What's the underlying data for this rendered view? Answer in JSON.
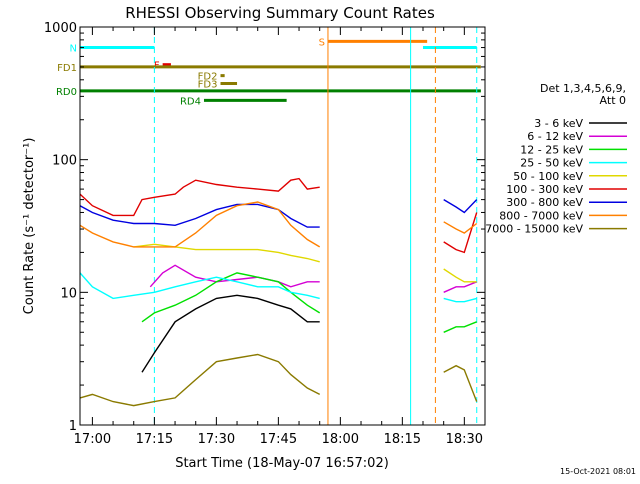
{
  "title": "RHESSI Observing Summary Count Rates",
  "xlabel": "Start Time (18-May-07 16:57:02)",
  "ylabel": "Count Rate (s⁻¹ detector⁻¹)",
  "footer_date": "15-Oct-2021 08:01",
  "legend": {
    "header": [
      "Det 1,3,4,5,6,9,",
      "Att 0"
    ],
    "placement": "right-outside"
  },
  "chart_data": {
    "type": "line",
    "y_scale": "log",
    "xlim": [
      "16:57",
      "18:35"
    ],
    "ylim": [
      1,
      1000
    ],
    "x_ticks": [
      "17:00",
      "17:15",
      "17:30",
      "17:45",
      "18:00",
      "18:15",
      "18:30"
    ],
    "y_ticks": [
      {
        "value": 1,
        "label": "1"
      },
      {
        "value": 10,
        "label": "10"
      },
      {
        "value": 100,
        "label": "100"
      },
      {
        "value": 1000,
        "label": "1000"
      }
    ],
    "series": [
      {
        "name": "3 - 6 keV",
        "color": "#000000",
        "segments": [
          {
            "x": [
              "17:12",
              "17:15",
              "17:20",
              "17:25",
              "17:30",
              "17:35",
              "17:40",
              "17:45",
              "17:48",
              "17:52",
              "17:55"
            ],
            "y": [
              2.5,
              3.5,
              6,
              7.5,
              9,
              9.5,
              9,
              8,
              7.5,
              6,
              6
            ]
          }
        ]
      },
      {
        "name": "6 - 12 keV",
        "color": "#d400d4",
        "segments": [
          {
            "x": [
              "17:14",
              "17:17",
              "17:20",
              "17:25",
              "17:30",
              "17:35",
              "17:40",
              "17:45",
              "17:48",
              "17:52",
              "17:55"
            ],
            "y": [
              11,
              14,
              16,
              13,
              12,
              12.5,
              13,
              12,
              11,
              12,
              12
            ]
          },
          {
            "x": [
              "18:25",
              "18:28",
              "18:30",
              "18:33"
            ],
            "y": [
              10,
              11,
              11,
              12
            ]
          }
        ]
      },
      {
        "name": "12 - 25 keV",
        "color": "#00e000",
        "segments": [
          {
            "x": [
              "17:12",
              "17:15",
              "17:20",
              "17:25",
              "17:30",
              "17:35",
              "17:40",
              "17:45",
              "17:48",
              "17:52",
              "17:55"
            ],
            "y": [
              6,
              7,
              8,
              9.5,
              12,
              14,
              13,
              12,
              10,
              8,
              7
            ]
          },
          {
            "x": [
              "18:25",
              "18:28",
              "18:30",
              "18:33"
            ],
            "y": [
              5,
              5.5,
              5.5,
              6
            ]
          }
        ]
      },
      {
        "name": "25 - 50 keV",
        "color": "#00ffff",
        "segments": [
          {
            "x": [
              "16:57",
              "17:00",
              "17:05",
              "17:10",
              "17:15",
              "17:20",
              "17:25",
              "17:30",
              "17:35",
              "17:40",
              "17:45",
              "17:48",
              "17:52",
              "17:55"
            ],
            "y": [
              14,
              11,
              9,
              9.5,
              10,
              11,
              12,
              13,
              12,
              11,
              11,
              10,
              9.5,
              9
            ]
          },
          {
            "x": [
              "18:25",
              "18:28",
              "18:30",
              "18:33"
            ],
            "y": [
              9,
              8.5,
              8.5,
              9
            ]
          }
        ]
      },
      {
        "name": "50 - 100 keV",
        "color": "#e0d800",
        "segments": [
          {
            "x": [
              "17:10",
              "17:15",
              "17:20",
              "17:25",
              "17:30",
              "17:35",
              "17:40",
              "17:45",
              "17:48",
              "17:52",
              "17:55"
            ],
            "y": [
              22,
              23,
              22,
              21,
              21,
              21,
              21,
              20,
              19,
              18,
              17
            ]
          },
          {
            "x": [
              "18:25",
              "18:28",
              "18:30",
              "18:33"
            ],
            "y": [
              15,
              13,
              12,
              12
            ]
          }
        ]
      },
      {
        "name": "100 - 300 keV",
        "color": "#e00000",
        "segments": [
          {
            "x": [
              "16:57",
              "17:00",
              "17:05",
              "17:10",
              "17:12",
              "17:15",
              "17:20",
              "17:22",
              "17:25",
              "17:30",
              "17:35",
              "17:40",
              "17:45",
              "17:48",
              "17:50",
              "17:52",
              "17:55"
            ],
            "y": [
              55,
              45,
              38,
              38,
              50,
              52,
              55,
              62,
              70,
              65,
              62,
              60,
              58,
              70,
              72,
              60,
              62
            ]
          },
          {
            "x": [
              "18:25",
              "18:28",
              "18:30",
              "18:33"
            ],
            "y": [
              24,
              21,
              20,
              40
            ]
          }
        ]
      },
      {
        "name": "300 - 800 keV",
        "color": "#0000e0",
        "segments": [
          {
            "x": [
              "16:57",
              "17:00",
              "17:05",
              "17:10",
              "17:15",
              "17:20",
              "17:25",
              "17:30",
              "17:35",
              "17:40",
              "17:45",
              "17:48",
              "17:52",
              "17:55"
            ],
            "y": [
              45,
              40,
              35,
              33,
              33,
              32,
              36,
              42,
              46,
              46,
              42,
              36,
              31,
              31
            ]
          },
          {
            "x": [
              "18:25",
              "18:28",
              "18:30",
              "18:33"
            ],
            "y": [
              50,
              44,
              40,
              50
            ]
          }
        ]
      },
      {
        "name": "800 - 7000 keV",
        "color": "#ff8000",
        "segments": [
          {
            "x": [
              "16:57",
              "17:00",
              "17:05",
              "17:10",
              "17:15",
              "17:20",
              "17:25",
              "17:30",
              "17:35",
              "17:40",
              "17:45",
              "17:48",
              "17:52",
              "17:55"
            ],
            "y": [
              32,
              28,
              24,
              22,
              22,
              22,
              28,
              38,
              45,
              48,
              42,
              32,
              25,
              22
            ]
          },
          {
            "x": [
              "18:25",
              "18:28",
              "18:30",
              "18:33"
            ],
            "y": [
              34,
              30,
              28,
              33
            ]
          }
        ]
      },
      {
        "name": "7000 - 15000 keV",
        "color": "#8a7a00",
        "segments": [
          {
            "x": [
              "16:57",
              "17:00",
              "17:05",
              "17:10",
              "17:15",
              "17:20",
              "17:25",
              "17:30",
              "17:35",
              "17:40",
              "17:45",
              "17:48",
              "17:52",
              "17:55"
            ],
            "y": [
              1.6,
              1.7,
              1.5,
              1.4,
              1.5,
              1.6,
              2.2,
              3,
              3.2,
              3.4,
              3,
              2.4,
              1.9,
              1.7
            ]
          },
          {
            "x": [
              "18:25",
              "18:28",
              "18:30",
              "18:33"
            ],
            "y": [
              2.5,
              2.8,
              2.6,
              1.5
            ]
          }
        ]
      }
    ],
    "flags": [
      {
        "label": "N",
        "color": "#00ffff",
        "y": 700,
        "segments": [
          [
            "16:57",
            "17:15"
          ],
          [
            "18:20",
            "18:33"
          ]
        ]
      },
      {
        "label": "F",
        "color": "#e00000",
        "y": 520,
        "segments": [
          [
            "17:17",
            "17:19"
          ]
        ]
      },
      {
        "label": "S",
        "color": "#ff8000",
        "y": 780,
        "segments": [
          [
            "17:57",
            "18:21"
          ]
        ]
      },
      {
        "label": "FD1",
        "color": "#8a7a00",
        "y": 500,
        "segments": [
          [
            "16:57",
            "18:34"
          ]
        ]
      },
      {
        "label": "FD2",
        "color": "#8a7a00",
        "y": 430,
        "segments": [
          [
            "17:31",
            "17:32"
          ]
        ]
      },
      {
        "label": "FD3",
        "color": "#8a7a00",
        "y": 375,
        "segments": [
          [
            "17:31",
            "17:35"
          ]
        ]
      },
      {
        "label": "RD0",
        "color": "#008000",
        "y": 330,
        "segments": [
          [
            "16:57",
            "18:34"
          ]
        ]
      },
      {
        "label": "RD4",
        "color": "#008000",
        "y": 280,
        "segments": [
          [
            "17:27",
            "17:47"
          ]
        ]
      }
    ],
    "vlines": [
      {
        "x": "17:15",
        "color": "#00ffff",
        "style": "dashed"
      },
      {
        "x": "17:57",
        "color": "#ff8000",
        "style": "solid"
      },
      {
        "x": "18:17",
        "color": "#00ffff",
        "style": "solid"
      },
      {
        "x": "18:23",
        "color": "#ff8000",
        "style": "dashed"
      },
      {
        "x": "18:33",
        "color": "#00ffff",
        "style": "dashed"
      }
    ]
  }
}
